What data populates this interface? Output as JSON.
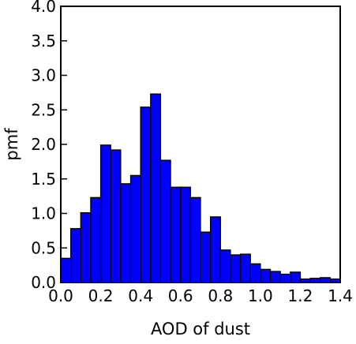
{
  "chart_data": {
    "type": "bar",
    "title": "",
    "xlabel": "AOD of dust",
    "ylabel": "pmf",
    "xlim": [
      0.0,
      1.4
    ],
    "ylim": [
      0.0,
      4.0
    ],
    "bin_width": 0.05,
    "bar_color": "#0000ff",
    "edge_color": "#000000",
    "grid": false,
    "legend": "none",
    "xticks": [
      "0.0",
      "0.2",
      "0.4",
      "0.6",
      "0.8",
      "1.0",
      "1.2",
      "1.4"
    ],
    "yticks": [
      "0.0",
      "0.5",
      "1.0",
      "1.5",
      "2.0",
      "2.5",
      "3.0",
      "3.5",
      "4.0"
    ],
    "bin_starts": [
      0.0,
      0.05,
      0.1,
      0.15,
      0.2,
      0.25,
      0.3,
      0.35,
      0.4,
      0.45,
      0.5,
      0.55,
      0.6,
      0.65,
      0.7,
      0.75,
      0.8,
      0.85,
      0.9,
      0.95,
      1.0,
      1.05,
      1.1,
      1.15,
      1.2,
      1.25,
      1.3,
      1.35
    ],
    "values": [
      0.35,
      0.78,
      1.01,
      1.23,
      1.99,
      1.92,
      1.43,
      1.55,
      2.54,
      2.73,
      1.77,
      1.38,
      1.38,
      1.23,
      0.73,
      0.95,
      0.47,
      0.4,
      0.41,
      0.27,
      0.19,
      0.16,
      0.12,
      0.15,
      0.05,
      0.06,
      0.07,
      0.05
    ]
  }
}
